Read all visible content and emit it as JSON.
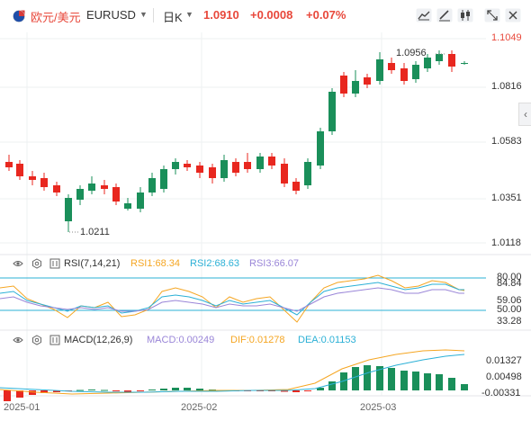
{
  "header": {
    "pair_name": "欧元/美元",
    "symbol": "EURUSD",
    "period": "日K",
    "last_price": "1.0910",
    "change": "+0.0008",
    "change_pct": "+0.07%",
    "price_color": "#e8483b",
    "icons": [
      "area-chart-icon",
      "draw-icon",
      "candle-style-icon",
      "fullscreen-icon",
      "close-icon"
    ]
  },
  "main_chart": {
    "y_ticks": [
      "1.1049",
      "1.0816",
      "1.0583",
      "1.0351",
      "1.0118"
    ],
    "high_label": "1.0956",
    "low_label": "1.0211",
    "up_color": "#1a8f5a",
    "down_color": "#e8271f"
  },
  "rsi": {
    "title": "RSI(7,14,21)",
    "rsi1": "RSI1:68.34",
    "rsi2": "RSI2:68.63",
    "rsi3": "RSI3:66.07",
    "ticks": [
      "80.00",
      "84.84",
      "59.06",
      "50.00",
      "33.28"
    ],
    "rsi1_color": "#f5a623",
    "rsi2_color": "#2bb0d6",
    "rsi3_color": "#9a86d8"
  },
  "macd": {
    "title": "MACD(12,26,9)",
    "macd": "MACD:0.00249",
    "dif": "DIF:0.01278",
    "dea": "DEA:0.01153",
    "ticks": [
      "0.01327",
      "0.00498",
      "-0.00331"
    ],
    "macd_color": "#9a86d8",
    "dif_color": "#f5a623",
    "dea_color": "#2bb0d6"
  },
  "x_axis": [
    "2025-01",
    "2025-02",
    "2025-03"
  ]
}
